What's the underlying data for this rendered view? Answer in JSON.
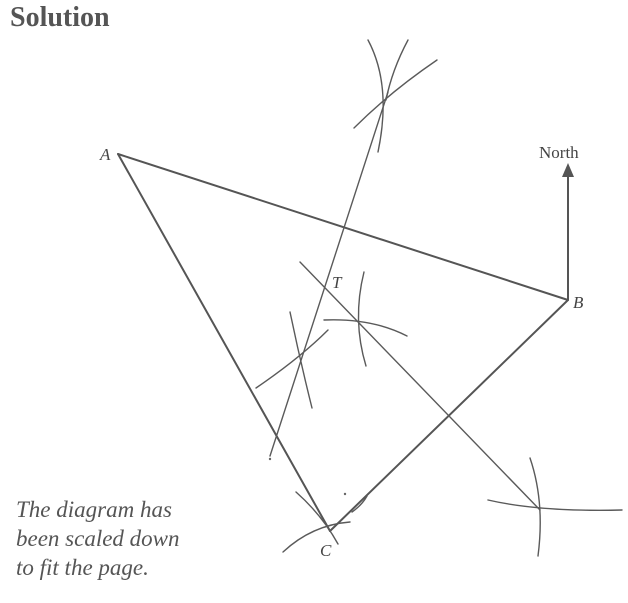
{
  "title": "Solution",
  "caption": {
    "line1": "The diagram has",
    "line2": "been scaled down",
    "line3": "to fit the page."
  },
  "points": {
    "A": "A",
    "B": "B",
    "C": "C",
    "T": "T"
  },
  "north_label": "North"
}
